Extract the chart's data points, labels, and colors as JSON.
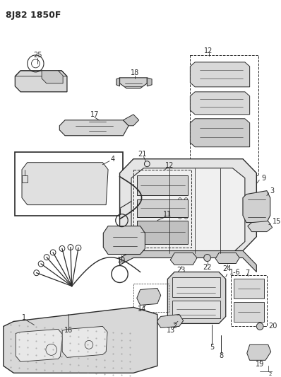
{
  "title": "8J82 1850F",
  "bg_color": "#ffffff",
  "lc": "#2a2a2a",
  "figsize": [
    3.98,
    5.33
  ],
  "dpi": 100
}
